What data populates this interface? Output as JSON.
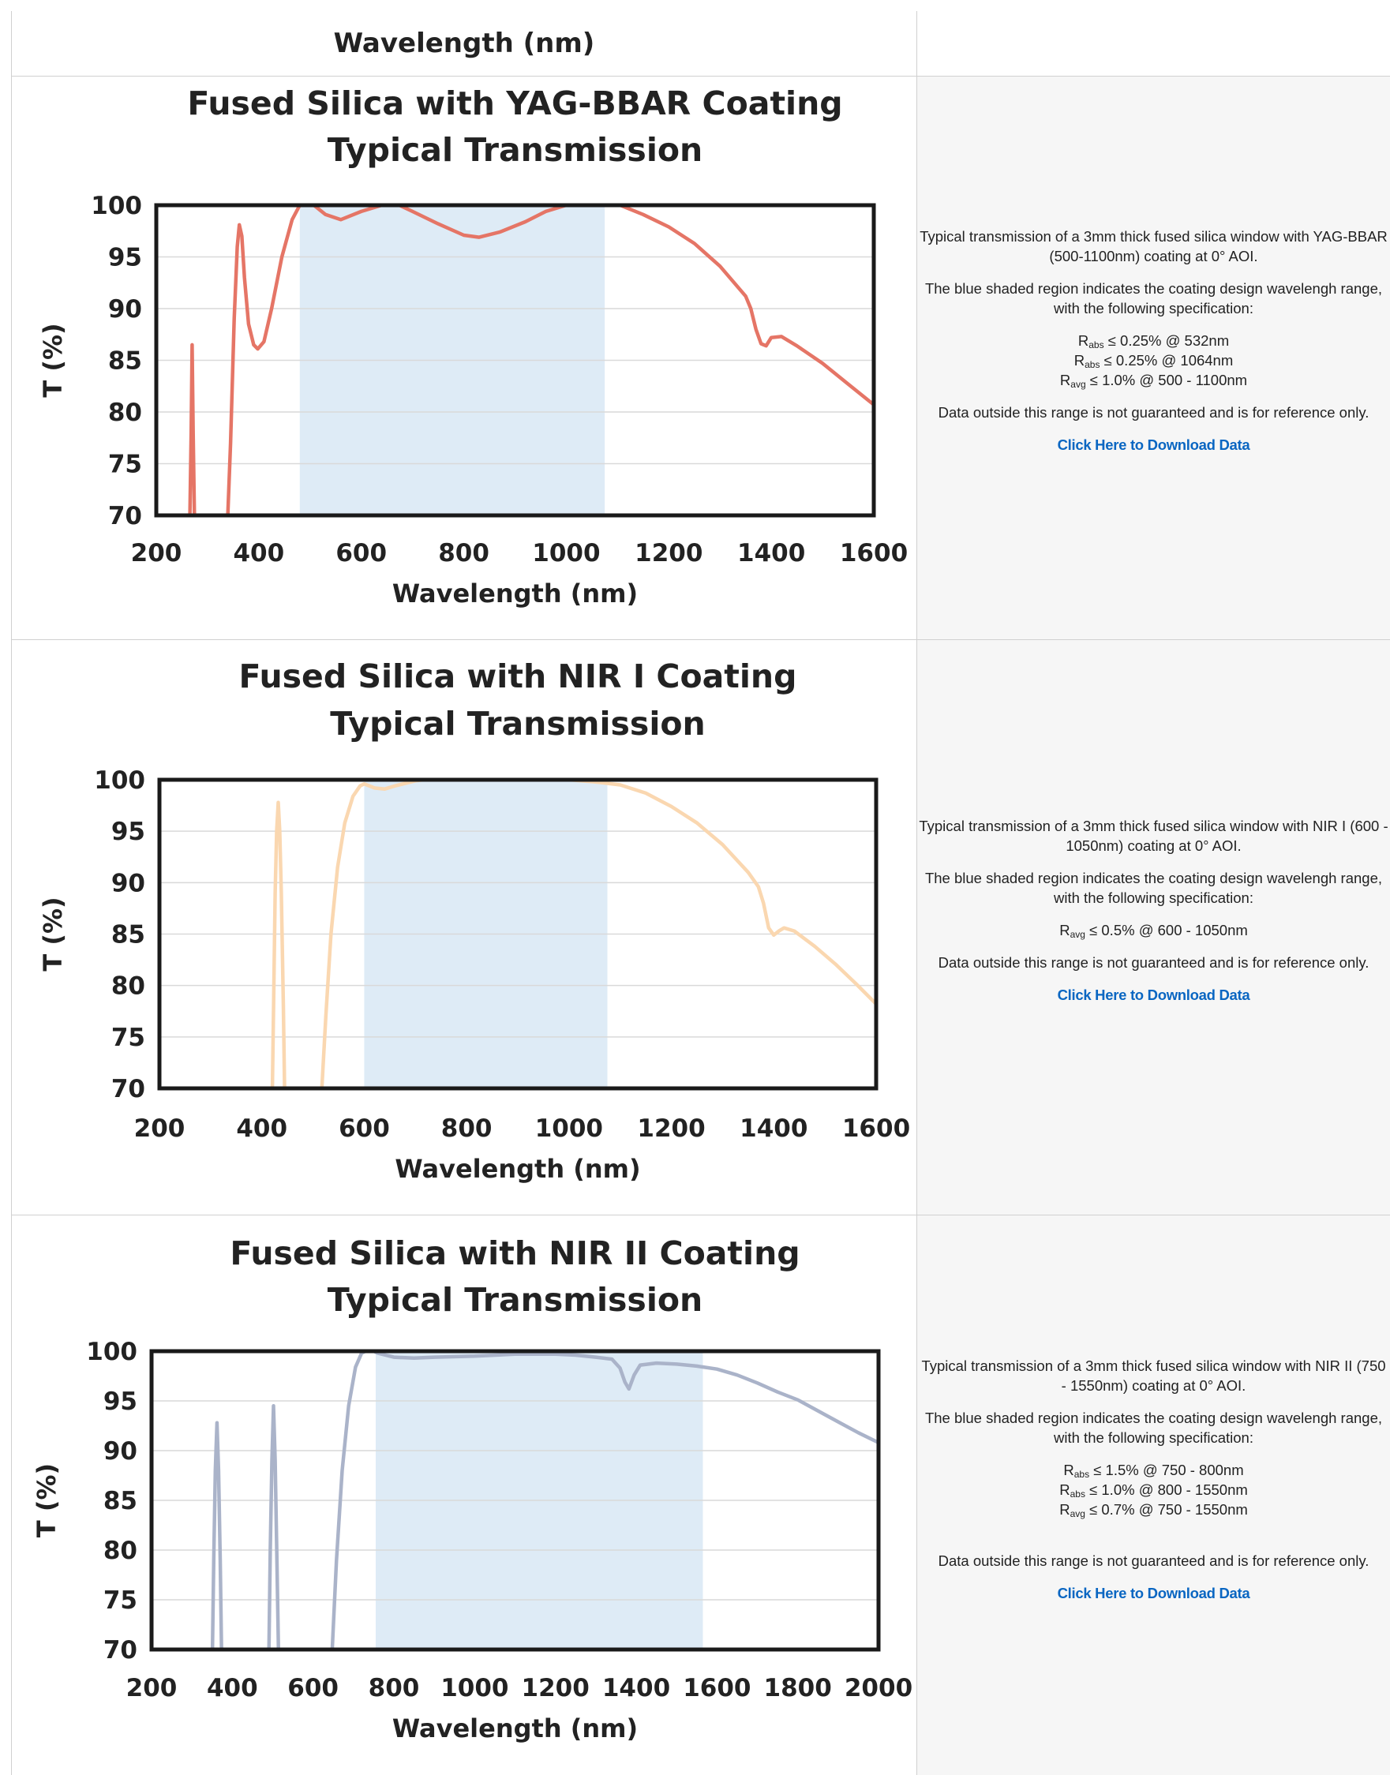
{
  "top_row": {
    "xlabel": "Wavelength (nm)"
  },
  "charts": [
    {
      "title_line1": "Fused Silica with YAG-BBAR Coating",
      "title_line2": "Typical Transmission",
      "line_color": "#e57566",
      "shade_color": "#deebf6",
      "description": {
        "intro": "Typical transmission of a 3mm thick fused silica window with YAG-BBAR (500-1100nm) coating at 0° AOI.",
        "shaded": "The blue shaded region indicates the coating design wavelengh range, with the following specification:",
        "specs": [
          {
            "sym": "R",
            "sub": "abs",
            "text": "≤ 0.25% @ 532nm"
          },
          {
            "sym": "R",
            "sub": "abs",
            "text": "≤ 0.25% @ 1064nm"
          },
          {
            "sym": "R",
            "sub": "avg",
            "text": "≤ 1.0% @ 500 - 1100nm"
          }
        ],
        "note": "Data outside this range is not guaranteed and is for reference only.",
        "link": "Click Here to Download Data"
      }
    },
    {
      "title_line1": "Fused Silica with NIR I Coating",
      "title_line2": "Typical Transmission",
      "line_color": "#fad7b0",
      "shade_color": "#deebf6",
      "description": {
        "intro": "Typical transmission of a 3mm thick fused silica window with NIR I (600 - 1050nm) coating at 0° AOI.",
        "shaded": "The blue shaded region indicates the coating design wavelengh range, with the following specification:",
        "specs": [
          {
            "sym": "R",
            "sub": "avg",
            "text": "≤ 0.5% @ 600 - 1050nm"
          }
        ],
        "note": "Data outside this range is not guaranteed and is for reference only.",
        "link": "Click Here to Download Data"
      }
    },
    {
      "title_line1": "Fused Silica with NIR II Coating",
      "title_line2": "Typical Transmission",
      "line_color": "#aab3c9",
      "shade_color": "#deebf6",
      "description": {
        "intro": "Typical transmission of a 3mm thick fused silica window with NIR II (750 - 1550nm) coating at 0° AOI.",
        "shaded": "The blue shaded region indicates the coating design wavelengh range, with the following specification:",
        "specs": [
          {
            "sym": "R",
            "sub": "abs",
            "text": "≤ 1.5% @ 750 - 800nm"
          },
          {
            "sym": "R",
            "sub": "abs",
            "text": "≤ 1.0% @ 800 - 1550nm"
          },
          {
            "sym": "R",
            "sub": "avg",
            "text": "≤ 0.7% @ 750 - 1550nm"
          }
        ],
        "note": "Data outside this range is not guaranteed and is for reference only.",
        "link": "Click Here to Download Data"
      }
    }
  ],
  "chart_data": [
    {
      "type": "line",
      "title": "Fused Silica with YAG-BBAR Coating Typical Transmission",
      "xlabel": "Wavelength (nm)",
      "ylabel": "T (%)",
      "xlim": [
        200,
        1600
      ],
      "ylim": [
        70,
        100
      ],
      "xticks": [
        "200",
        "400",
        "600",
        "800",
        "1000",
        "1200",
        "1400",
        "1600"
      ],
      "yticks": [
        "70",
        "75",
        "80",
        "85",
        "90",
        "95",
        "100"
      ],
      "grid": true,
      "shaded_range": [
        480,
        1075
      ],
      "series": [
        {
          "segments": [
            [
              [
                265,
                68
              ],
              [
                268,
                78
              ],
              [
                270,
                86.5
              ],
              [
                272,
                78
              ],
              [
                275,
                68
              ]
            ],
            [
              [
                338,
                68
              ],
              [
                345,
                77
              ],
              [
                352,
                89
              ],
              [
                358,
                96
              ],
              [
                362,
                98.1
              ],
              [
                367,
                97
              ],
              [
                372,
                93
              ],
              [
                380,
                88.5
              ],
              [
                390,
                86.5
              ],
              [
                398,
                86.1
              ],
              [
                410,
                86.8
              ],
              [
                425,
                90
              ],
              [
                445,
                95
              ],
              [
                465,
                98.6
              ],
              [
                480,
                100
              ],
              [
                500,
                100.3
              ],
              [
                530,
                99.1
              ],
              [
                560,
                98.6
              ],
              [
                600,
                99.4
              ],
              [
                640,
                100
              ],
              [
                670,
                100.1
              ],
              [
                700,
                99.4
              ],
              [
                750,
                98.2
              ],
              [
                800,
                97.1
              ],
              [
                830,
                96.9
              ],
              [
                870,
                97.4
              ],
              [
                920,
                98.4
              ],
              [
                960,
                99.4
              ],
              [
                1000,
                100
              ],
              [
                1050,
                100.2
              ],
              [
                1100,
                100.1
              ],
              [
                1150,
                99.1
              ],
              [
                1200,
                97.9
              ],
              [
                1250,
                96.3
              ],
              [
                1300,
                94.1
              ],
              [
                1350,
                91.2
              ],
              [
                1360,
                90
              ],
              [
                1370,
                88
              ],
              [
                1380,
                86.6
              ],
              [
                1390,
                86.4
              ],
              [
                1400,
                87.2
              ],
              [
                1420,
                87.3
              ],
              [
                1450,
                86.4
              ],
              [
                1500,
                84.7
              ],
              [
                1550,
                82.7
              ],
              [
                1600,
                80.7
              ]
            ]
          ]
        }
      ]
    },
    {
      "type": "line",
      "title": "Fused Silica with NIR I Coating Typical Transmission",
      "xlabel": "Wavelength (nm)",
      "ylabel": "T (%)",
      "xlim": [
        200,
        1600
      ],
      "ylim": [
        70,
        100
      ],
      "xticks": [
        "200",
        "400",
        "600",
        "800",
        "1000",
        "1200",
        "1400",
        "1600"
      ],
      "yticks": [
        "70",
        "75",
        "80",
        "85",
        "90",
        "95",
        "100"
      ],
      "grid": true,
      "shaded_range": [
        600,
        1075
      ],
      "series": [
        {
          "segments": [
            [
              [
                420,
                68
              ],
              [
                423,
                78
              ],
              [
                426,
                89
              ],
              [
                429,
                95
              ],
              [
                432,
                97.8
              ],
              [
                435,
                95
              ],
              [
                438,
                89
              ],
              [
                442,
                78
              ],
              [
                445,
                68
              ]
            ],
            [
              [
                515,
                68
              ],
              [
                525,
                77
              ],
              [
                535,
                85
              ],
              [
                548,
                91.5
              ],
              [
                562,
                95.8
              ],
              [
                578,
                98.4
              ],
              [
                592,
                99.4
              ],
              [
                600,
                99.6
              ],
              [
                620,
                99.2
              ],
              [
                640,
                99.1
              ],
              [
                660,
                99.4
              ],
              [
                700,
                99.9
              ],
              [
                750,
                100.2
              ],
              [
                800,
                100.3
              ],
              [
                850,
                100.3
              ],
              [
                900,
                100.2
              ],
              [
                950,
                100.1
              ],
              [
                1000,
                100
              ],
              [
                1050,
                99.8
              ],
              [
                1100,
                99.5
              ],
              [
                1150,
                98.7
              ],
              [
                1200,
                97.4
              ],
              [
                1250,
                95.8
              ],
              [
                1300,
                93.7
              ],
              [
                1350,
                91
              ],
              [
                1370,
                89.6
              ],
              [
                1380,
                88
              ],
              [
                1390,
                85.6
              ],
              [
                1400,
                84.9
              ],
              [
                1410,
                85.3
              ],
              [
                1420,
                85.6
              ],
              [
                1440,
                85.3
              ],
              [
                1480,
                83.8
              ],
              [
                1520,
                82.1
              ],
              [
                1560,
                80.2
              ],
              [
                1600,
                78.2
              ]
            ]
          ]
        }
      ]
    },
    {
      "type": "line",
      "title": "Fused Silica with NIR II Coating Typical Transmission",
      "xlabel": "Wavelength (nm)",
      "ylabel": "T (%)",
      "xlim": [
        200,
        2000
      ],
      "ylim": [
        70,
        100
      ],
      "xticks": [
        "200",
        "400",
        "600",
        "800",
        "1000",
        "1200",
        "1400",
        "1600",
        "1800",
        "2000"
      ],
      "yticks": [
        "70",
        "75",
        "80",
        "85",
        "90",
        "95",
        "100"
      ],
      "grid": true,
      "shaded_range": [
        755,
        1565
      ],
      "series": [
        {
          "segments": [
            [
              [
                350,
                68
              ],
              [
                354,
                79
              ],
              [
                358,
                88
              ],
              [
                362,
                92.8
              ],
              [
                366,
                88
              ],
              [
                370,
                79
              ],
              [
                374,
                68
              ]
            ],
            [
              [
                490,
                68
              ],
              [
                494,
                80
              ],
              [
                498,
                89
              ],
              [
                502,
                94.5
              ],
              [
                506,
                89
              ],
              [
                510,
                80
              ],
              [
                515,
                68
              ]
            ],
            [
              [
                645,
                68
              ],
              [
                658,
                79
              ],
              [
                672,
                88
              ],
              [
                688,
                94.5
              ],
              [
                705,
                98.4
              ],
              [
                720,
                99.8
              ],
              [
                740,
                100.2
              ],
              [
                760,
                99.8
              ],
              [
                800,
                99.4
              ],
              [
                850,
                99.3
              ],
              [
                900,
                99.4
              ],
              [
                1000,
                99.5
              ],
              [
                1100,
                99.7
              ],
              [
                1200,
                99.7
              ],
              [
                1250,
                99.6
              ],
              [
                1300,
                99.4
              ],
              [
                1340,
                99.2
              ],
              [
                1360,
                98.3
              ],
              [
                1372,
                96.9
              ],
              [
                1382,
                96.2
              ],
              [
                1395,
                97.6
              ],
              [
                1410,
                98.6
              ],
              [
                1450,
                98.8
              ],
              [
                1500,
                98.7
              ],
              [
                1550,
                98.5
              ],
              [
                1600,
                98.2
              ],
              [
                1650,
                97.6
              ],
              [
                1700,
                96.8
              ],
              [
                1750,
                95.9
              ],
              [
                1800,
                95.1
              ],
              [
                1850,
                94
              ],
              [
                1900,
                92.9
              ],
              [
                1950,
                91.8
              ],
              [
                2000,
                90.8
              ]
            ]
          ]
        }
      ]
    }
  ]
}
